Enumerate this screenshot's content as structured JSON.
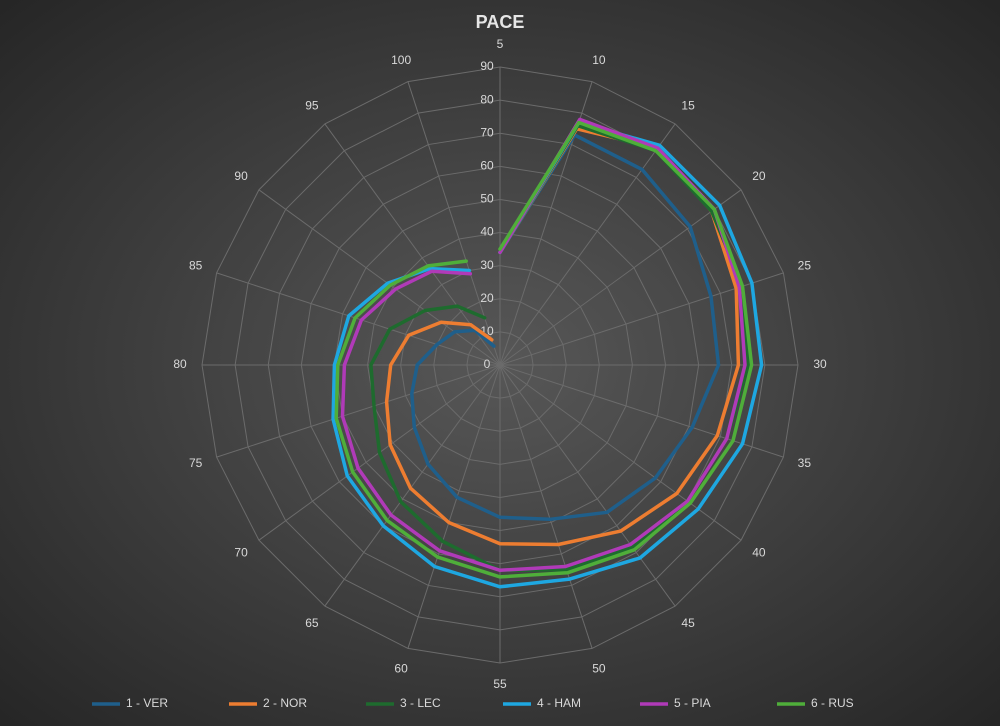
{
  "chart_data": {
    "type": "radar",
    "title": "PACE",
    "categories": [
      "5",
      "10",
      "15",
      "20",
      "25",
      "30",
      "35",
      "40",
      "45",
      "50",
      "55",
      "60",
      "65",
      "70",
      "75",
      "80",
      "85",
      "90",
      "95",
      "100"
    ],
    "ylim": [
      0,
      90
    ],
    "yticks": [
      0,
      10,
      20,
      30,
      40,
      50,
      60,
      70,
      80,
      90
    ],
    "grid": true,
    "legend": "bottom",
    "series": [
      {
        "name": "1 - VER",
        "color": "#1f5f8b",
        "values": [
          34,
          73,
          73,
          71,
          67,
          66,
          61,
          58,
          55,
          49,
          46,
          42,
          37,
          32,
          28,
          25,
          20,
          17,
          13,
          6
        ]
      },
      {
        "name": "2 - NOR",
        "color": "#ed7d31",
        "values": [
          34,
          75,
          81,
          79,
          75,
          72,
          69,
          66,
          62,
          57,
          54,
          50,
          46,
          41,
          36,
          33,
          29,
          22,
          15,
          8
        ]
      },
      {
        "name": "3 - LEC",
        "color": "#1e6b2e",
        "values": [
          34,
          76,
          80,
          79,
          77,
          75,
          72,
          70,
          68,
          65,
          62,
          56,
          51,
          45,
          40,
          39,
          35,
          28,
          22,
          15
        ]
      },
      {
        "name": "4 - HAM",
        "color": "#1ea7e1",
        "values": [
          34,
          77,
          82,
          82,
          80,
          79,
          77,
          74,
          72,
          68,
          67,
          64,
          60,
          57,
          53,
          50,
          48,
          42,
          36,
          30
        ]
      },
      {
        "name": "5 - PIA",
        "color": "#b03ab8",
        "values": [
          34,
          78,
          81,
          80,
          76,
          74,
          72,
          70,
          67,
          64,
          62,
          59,
          56,
          53,
          50,
          47,
          44,
          39,
          35,
          29
        ]
      },
      {
        "name": "6 - RUS",
        "color": "#4fae3a",
        "values": [
          35,
          77,
          80,
          80,
          77,
          76,
          74,
          71,
          69,
          66,
          64,
          61,
          58,
          55,
          52,
          49,
          46,
          41,
          37,
          33
        ]
      }
    ]
  }
}
